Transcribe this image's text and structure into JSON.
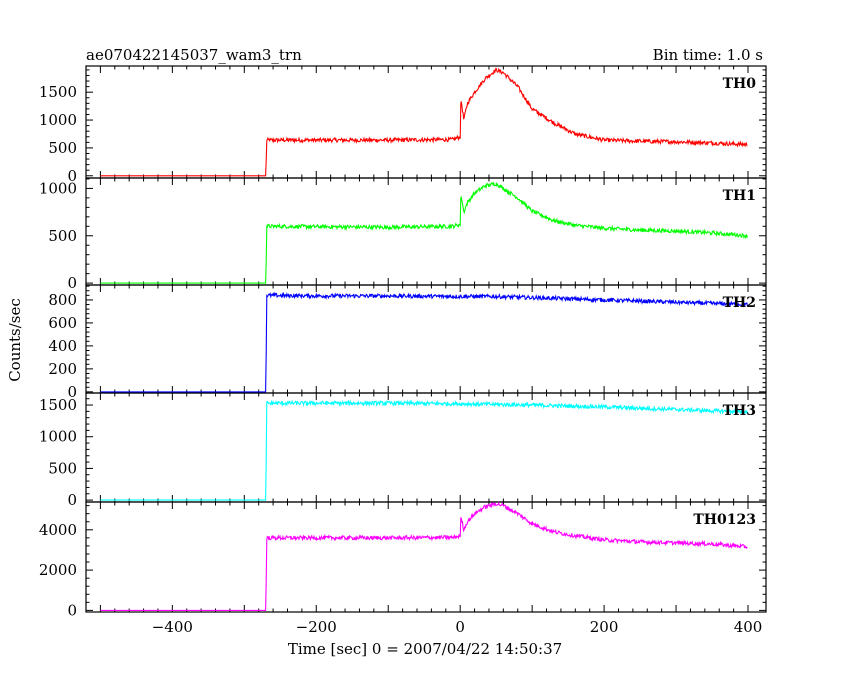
{
  "header": {
    "title": "ae070422145037_wam3_trn",
    "bin_time": "Bin time: 1.0 s"
  },
  "chart_data": {
    "type": "line",
    "title": "ae070422145037_wam3_trn",
    "subtitle": "Bin time: 1.0 s",
    "xlabel": "Time [sec] 0 = 2007/04/22 14:50:37",
    "ylabel": "Counts/sec",
    "xlim": [
      -520,
      425
    ],
    "xticks": [
      -400,
      -200,
      0,
      200,
      400
    ],
    "grid": false,
    "legend": "none",
    "panels": [
      {
        "name": "TH0",
        "color": "#ff0000",
        "ylim": [
          -40,
          1970
        ],
        "yticks": [
          0,
          500,
          1000,
          1500
        ],
        "x": [
          -500,
          -270,
          -269,
          -100,
          -10,
          0,
          1,
          5,
          10,
          20,
          35,
          50,
          60,
          80,
          100,
          130,
          160,
          200,
          250,
          300,
          350,
          400
        ],
        "y": [
          0,
          0,
          640,
          640,
          650,
          700,
          1400,
          1000,
          1300,
          1500,
          1750,
          1900,
          1850,
          1600,
          1200,
          950,
          750,
          640,
          620,
          610,
          590,
          560
        ]
      },
      {
        "name": "TH1",
        "color": "#00ff00",
        "ylim": [
          -20,
          1110
        ],
        "yticks": [
          0,
          500,
          1000
        ],
        "x": [
          -500,
          -270,
          -269,
          -100,
          -10,
          0,
          1,
          5,
          10,
          20,
          35,
          50,
          60,
          80,
          100,
          130,
          160,
          200,
          250,
          300,
          350,
          400
        ],
        "y": [
          0,
          0,
          600,
          590,
          600,
          620,
          950,
          750,
          850,
          950,
          1030,
          1050,
          1000,
          900,
          760,
          660,
          610,
          580,
          560,
          550,
          530,
          500
        ]
      },
      {
        "name": "TH2",
        "color": "#0000ff",
        "ylim": [
          -10,
          930
        ],
        "yticks": [
          0,
          200,
          400,
          600,
          800
        ],
        "x": [
          -500,
          -270,
          -269,
          -200,
          -100,
          0,
          50,
          100,
          200,
          300,
          400
        ],
        "y": [
          0,
          0,
          840,
          835,
          835,
          830,
          830,
          820,
          800,
          780,
          760
        ]
      },
      {
        "name": "TH3",
        "color": "#00ffff",
        "ylim": [
          -30,
          1690
        ],
        "yticks": [
          0,
          500,
          1000,
          1500
        ],
        "x": [
          -500,
          -270,
          -269,
          -200,
          -100,
          0,
          100,
          200,
          300,
          400
        ],
        "y": [
          0,
          0,
          1530,
          1530,
          1530,
          1520,
          1500,
          1470,
          1430,
          1390
        ]
      },
      {
        "name": "TH0123",
        "color": "#ff00ff",
        "ylim": [
          -80,
          5380
        ],
        "yticks": [
          0,
          2000,
          4000
        ],
        "x": [
          -500,
          -270,
          -269,
          -100,
          -10,
          0,
          1,
          5,
          10,
          20,
          35,
          50,
          60,
          80,
          100,
          130,
          160,
          200,
          250,
          300,
          350,
          400
        ],
        "y": [
          0,
          0,
          3600,
          3600,
          3620,
          3700,
          4700,
          4000,
          4400,
          4800,
          5150,
          5300,
          5200,
          4800,
          4300,
          3900,
          3700,
          3500,
          3400,
          3350,
          3300,
          3150
        ]
      }
    ]
  }
}
